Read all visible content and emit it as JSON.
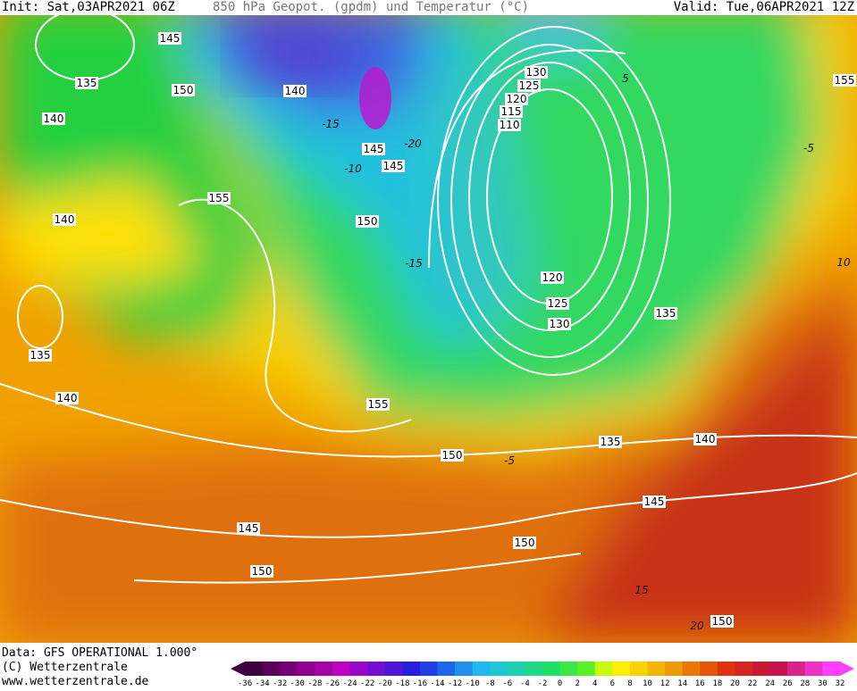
{
  "header": {
    "init": "Init: Sat,03APR2021 06Z",
    "title": "850 hPa Geopot. (gpdm) und Temperatur (°C)",
    "valid": "Valid: Tue,06APR2021 12Z"
  },
  "map": {
    "geopotential_labels": [
      145,
      135,
      150,
      140,
      140,
      145,
      145,
      155,
      140,
      150,
      130,
      125,
      120,
      115,
      110,
      120,
      125,
      130,
      135,
      135,
      140,
      155,
      150,
      135,
      140,
      145,
      145,
      150,
      150,
      150,
      155
    ],
    "temperature_labels": [
      -15,
      -10,
      -20,
      -15,
      5,
      -5,
      10,
      -5,
      15,
      20
    ]
  },
  "footer": {
    "data": "Data: GFS OPERATIONAL 1.000°",
    "copyright": "(C) Wetterzentrale",
    "url": "www.wetterzentrale.de"
  },
  "colorbar": {
    "labels": [
      -36,
      -34,
      -32,
      -30,
      -28,
      -26,
      -24,
      -22,
      -20,
      -18,
      -16,
      -14,
      -12,
      -10,
      -8,
      -6,
      -4,
      -2,
      0,
      2,
      4,
      6,
      8,
      10,
      12,
      14,
      16,
      18,
      20,
      22,
      24,
      26,
      28,
      30,
      32
    ]
  }
}
